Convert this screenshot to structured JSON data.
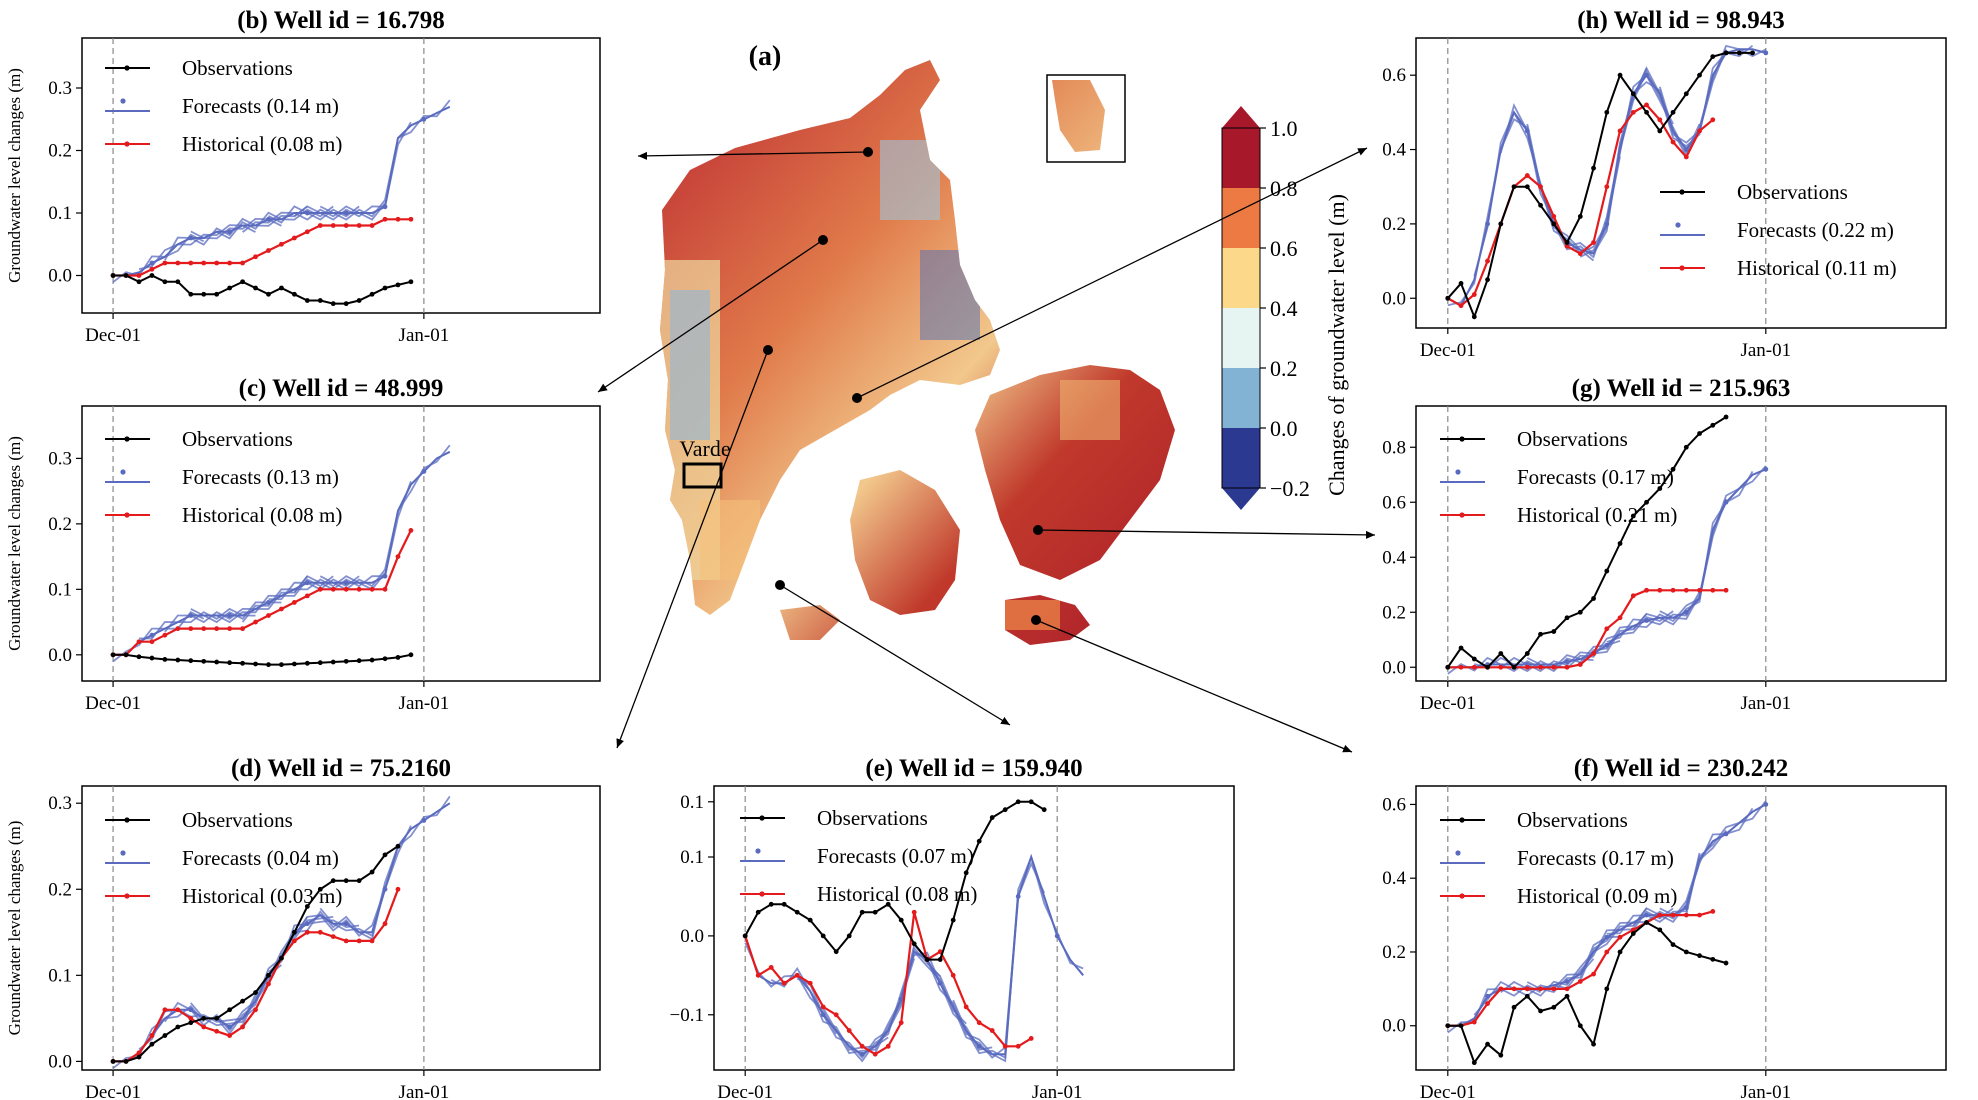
{
  "map": {
    "label": "(a)",
    "place_label": "Varde",
    "colorbar": {
      "label": "Changes of groundwater level (m)",
      "ticks": [
        "1.0",
        "0.8",
        "0.6",
        "0.4",
        "0.2",
        "0.0",
        "−0.2"
      ],
      "colors": [
        "#a8182b",
        "#ee7a43",
        "#fcd88a",
        "#e6f4f2",
        "#82b3d5",
        "#2b3991"
      ]
    }
  },
  "chart_data": [
    {
      "id": "b",
      "type": "line",
      "title": "(b)  Well id = 16.798",
      "ylabel": "Groundwater level changes (m)",
      "xticks": [
        "Dec-01",
        "Jan-01"
      ],
      "yticks": [
        "0.0",
        "0.1",
        "0.2",
        "0.3"
      ],
      "ylim": [
        -0.06,
        0.38
      ],
      "series": [
        {
          "name": "Observations",
          "color": "#000000",
          "values": [
            0.0,
            0.0,
            -0.01,
            0.0,
            -0.01,
            -0.01,
            -0.03,
            -0.03,
            -0.03,
            -0.02,
            -0.01,
            -0.02,
            -0.03,
            -0.02,
            -0.03,
            -0.04,
            -0.04,
            -0.045,
            -0.045,
            -0.04,
            -0.03,
            -0.02,
            -0.015,
            -0.01
          ]
        },
        {
          "name": "Forecasts (0.14 m)",
          "color": "#5a6bbf",
          "values": [
            0.0,
            0.0,
            0.005,
            0.02,
            0.03,
            0.05,
            0.06,
            0.06,
            0.07,
            0.07,
            0.08,
            0.08,
            0.09,
            0.09,
            0.1,
            0.1,
            0.1,
            0.1,
            0.1,
            0.1,
            0.1,
            0.11,
            0.22,
            0.24,
            0.25,
            0.26,
            0.27
          ]
        },
        {
          "name": "Historical (0.08 m)",
          "color": "#e41a1c",
          "values": [
            0.0,
            0.0,
            0.0,
            0.01,
            0.02,
            0.02,
            0.02,
            0.02,
            0.02,
            0.02,
            0.02,
            0.03,
            0.04,
            0.05,
            0.06,
            0.07,
            0.08,
            0.08,
            0.08,
            0.08,
            0.08,
            0.09,
            0.09,
            0.09
          ]
        }
      ]
    },
    {
      "id": "c",
      "type": "line",
      "title": "(c)  Well id = 48.999",
      "ylabel": "Groundwater level changes (m)",
      "xticks": [
        "Dec-01",
        "Jan-01"
      ],
      "yticks": [
        "0.0",
        "0.1",
        "0.2",
        "0.3"
      ],
      "ylim": [
        -0.04,
        0.38
      ],
      "series": [
        {
          "name": "Observations",
          "color": "#000000",
          "values": [
            0.0,
            0.0,
            -0.003,
            -0.005,
            -0.007,
            -0.008,
            -0.009,
            -0.01,
            -0.011,
            -0.012,
            -0.013,
            -0.014,
            -0.015,
            -0.015,
            -0.014,
            -0.013,
            -0.012,
            -0.011,
            -0.01,
            -0.009,
            -0.008,
            -0.006,
            -0.004,
            0.0
          ]
        },
        {
          "name": "Forecasts (0.13 m)",
          "color": "#5a6bbf",
          "values": [
            0.0,
            0.0,
            0.02,
            0.03,
            0.04,
            0.05,
            0.06,
            0.06,
            0.06,
            0.06,
            0.06,
            0.07,
            0.08,
            0.09,
            0.1,
            0.11,
            0.11,
            0.11,
            0.11,
            0.11,
            0.11,
            0.12,
            0.22,
            0.26,
            0.28,
            0.3,
            0.31
          ]
        },
        {
          "name": "Historical (0.08 m)",
          "color": "#e41a1c",
          "values": [
            0.0,
            0.0,
            0.02,
            0.02,
            0.03,
            0.04,
            0.04,
            0.04,
            0.04,
            0.04,
            0.04,
            0.05,
            0.06,
            0.07,
            0.08,
            0.09,
            0.1,
            0.1,
            0.1,
            0.1,
            0.1,
            0.1,
            0.15,
            0.19
          ]
        }
      ]
    },
    {
      "id": "d",
      "type": "line",
      "title": "(d) Well id = 75.2160",
      "ylabel": "Groundwater level changes (m)",
      "xticks": [
        "Dec-01",
        "Jan-01"
      ],
      "yticks": [
        "0.0",
        "0.1",
        "0.2",
        "0.3"
      ],
      "ylim": [
        -0.01,
        0.32
      ],
      "series": [
        {
          "name": "Observations",
          "color": "#000000",
          "values": [
            0.0,
            0.0,
            0.005,
            0.02,
            0.03,
            0.04,
            0.045,
            0.05,
            0.05,
            0.06,
            0.07,
            0.08,
            0.1,
            0.12,
            0.15,
            0.18,
            0.2,
            0.21,
            0.21,
            0.21,
            0.22,
            0.24,
            0.25
          ]
        },
        {
          "name": "Forecasts (0.04 m)",
          "color": "#5a6bbf",
          "values": [
            0.0,
            0.0,
            0.01,
            0.03,
            0.05,
            0.06,
            0.06,
            0.05,
            0.05,
            0.04,
            0.05,
            0.07,
            0.1,
            0.12,
            0.15,
            0.16,
            0.17,
            0.16,
            0.16,
            0.15,
            0.15,
            0.2,
            0.25,
            0.27,
            0.28,
            0.29,
            0.3
          ]
        },
        {
          "name": "Historical (0.03 m)",
          "color": "#e41a1c",
          "values": [
            0.0,
            0.0,
            0.01,
            0.03,
            0.06,
            0.06,
            0.05,
            0.04,
            0.035,
            0.03,
            0.04,
            0.06,
            0.09,
            0.12,
            0.14,
            0.15,
            0.15,
            0.145,
            0.14,
            0.14,
            0.14,
            0.16,
            0.2
          ]
        }
      ]
    },
    {
      "id": "e",
      "type": "line",
      "title": "(e)  Well id = 159.940",
      "ylabel": "",
      "xticks": [
        "Dec-01",
        "Jan-01"
      ],
      "yticks": [
        "−0.1",
        "0.0",
        "0.1",
        "0.1"
      ],
      "ylim": [
        -0.17,
        0.19
      ],
      "series": [
        {
          "name": "Observations",
          "color": "#000000",
          "values": [
            0.0,
            0.03,
            0.04,
            0.04,
            0.03,
            0.02,
            0.0,
            -0.02,
            0.0,
            0.03,
            0.03,
            0.04,
            0.02,
            -0.01,
            -0.03,
            -0.03,
            0.02,
            0.08,
            0.12,
            0.15,
            0.16,
            0.17,
            0.17,
            0.16
          ]
        },
        {
          "name": "Forecasts (0.07 m)",
          "color": "#5a6bbf",
          "values": [
            0.0,
            -0.05,
            -0.06,
            -0.06,
            -0.05,
            -0.07,
            -0.1,
            -0.12,
            -0.14,
            -0.15,
            -0.14,
            -0.12,
            -0.08,
            -0.02,
            -0.03,
            -0.06,
            -0.09,
            -0.12,
            -0.14,
            -0.15,
            -0.15,
            0.05,
            0.1,
            0.05,
            0.0,
            -0.03,
            -0.05
          ]
        },
        {
          "name": "Historical (0.08 m)",
          "color": "#e41a1c",
          "values": [
            0.0,
            -0.05,
            -0.04,
            -0.06,
            -0.05,
            -0.06,
            -0.09,
            -0.1,
            -0.12,
            -0.14,
            -0.15,
            -0.14,
            -0.11,
            0.03,
            -0.03,
            -0.02,
            -0.05,
            -0.09,
            -0.11,
            -0.12,
            -0.14,
            -0.14,
            -0.13
          ]
        }
      ]
    },
    {
      "id": "h",
      "type": "line",
      "title": "(h)  Well id = 98.943",
      "ylabel": "",
      "xticks": [
        "Dec-01",
        "Jan-01"
      ],
      "yticks": [
        "0.0",
        "0.2",
        "0.4",
        "0.6"
      ],
      "ylim": [
        -0.08,
        0.7
      ],
      "series": [
        {
          "name": "Observations",
          "color": "#000000",
          "values": [
            0.0,
            0.04,
            -0.05,
            0.05,
            0.2,
            0.3,
            0.3,
            0.25,
            0.2,
            0.15,
            0.22,
            0.35,
            0.5,
            0.6,
            0.55,
            0.5,
            0.45,
            0.5,
            0.55,
            0.6,
            0.65,
            0.66,
            0.66,
            0.66
          ]
        },
        {
          "name": "Forecasts (0.22 m)",
          "color": "#5a6bbf",
          "values": [
            0.0,
            -0.02,
            0.05,
            0.2,
            0.4,
            0.5,
            0.45,
            0.3,
            0.2,
            0.15,
            0.13,
            0.12,
            0.2,
            0.4,
            0.55,
            0.6,
            0.55,
            0.45,
            0.4,
            0.45,
            0.6,
            0.66,
            0.67,
            0.67,
            0.66
          ]
        },
        {
          "name": "Historical (0.11 m)",
          "color": "#e41a1c",
          "values": [
            0.0,
            -0.02,
            0.01,
            0.1,
            0.2,
            0.3,
            0.33,
            0.3,
            0.22,
            0.14,
            0.12,
            0.15,
            0.3,
            0.45,
            0.5,
            0.52,
            0.48,
            0.42,
            0.38,
            0.45,
            0.48
          ]
        }
      ]
    },
    {
      "id": "g",
      "type": "line",
      "title": "(g)  Well id = 215.963",
      "ylabel": "",
      "xticks": [
        "Dec-01",
        "Jan-01"
      ],
      "yticks": [
        "0.0",
        "0.2",
        "0.4",
        "0.6",
        "0.8"
      ],
      "ylim": [
        -0.05,
        0.95
      ],
      "series": [
        {
          "name": "Observations",
          "color": "#000000",
          "values": [
            0.0,
            0.07,
            0.03,
            0.0,
            0.05,
            0.0,
            0.05,
            0.12,
            0.13,
            0.18,
            0.2,
            0.25,
            0.35,
            0.45,
            0.55,
            0.6,
            0.65,
            0.72,
            0.8,
            0.85,
            0.88,
            0.91
          ]
        },
        {
          "name": "Forecasts (0.17 m)",
          "color": "#5a6bbf",
          "values": [
            0.0,
            0.0,
            0.0,
            0.01,
            0.01,
            0.01,
            0.01,
            0.01,
            0.01,
            0.02,
            0.03,
            0.05,
            0.08,
            0.12,
            0.15,
            0.17,
            0.18,
            0.18,
            0.2,
            0.25,
            0.5,
            0.6,
            0.65,
            0.7,
            0.72
          ]
        },
        {
          "name": "Historical (0.21 m)",
          "color": "#e41a1c",
          "values": [
            0.0,
            0.0,
            0.0,
            0.0,
            0.0,
            0.0,
            0.0,
            0.0,
            0.0,
            0.0,
            0.01,
            0.05,
            0.14,
            0.18,
            0.26,
            0.28,
            0.28,
            0.28,
            0.28,
            0.28,
            0.28,
            0.28
          ]
        }
      ]
    },
    {
      "id": "f",
      "type": "line",
      "title": "(f)  Well id = 230.242",
      "ylabel": "",
      "xticks": [
        "Dec-01",
        "Jan-01"
      ],
      "yticks": [
        "0.0",
        "0.2",
        "0.4",
        "0.6"
      ],
      "ylim": [
        -0.12,
        0.65
      ],
      "series": [
        {
          "name": "Observations",
          "color": "#000000",
          "values": [
            0.0,
            0.0,
            -0.1,
            -0.05,
            -0.08,
            0.05,
            0.08,
            0.04,
            0.05,
            0.08,
            0.0,
            -0.05,
            0.1,
            0.2,
            0.25,
            0.28,
            0.26,
            0.22,
            0.2,
            0.19,
            0.18,
            0.17
          ]
        },
        {
          "name": "Forecasts (0.17 m)",
          "color": "#5a6bbf",
          "values": [
            0.0,
            0.0,
            0.02,
            0.08,
            0.1,
            0.1,
            0.1,
            0.1,
            0.11,
            0.12,
            0.14,
            0.2,
            0.24,
            0.26,
            0.28,
            0.3,
            0.3,
            0.3,
            0.32,
            0.45,
            0.5,
            0.52,
            0.55,
            0.58,
            0.6
          ]
        },
        {
          "name": "Historical (0.09 m)",
          "color": "#e41a1c",
          "values": [
            0.0,
            0.0,
            0.01,
            0.06,
            0.1,
            0.1,
            0.1,
            0.1,
            0.1,
            0.1,
            0.12,
            0.14,
            0.2,
            0.24,
            0.26,
            0.28,
            0.3,
            0.3,
            0.3,
            0.3,
            0.31
          ]
        }
      ]
    }
  ]
}
